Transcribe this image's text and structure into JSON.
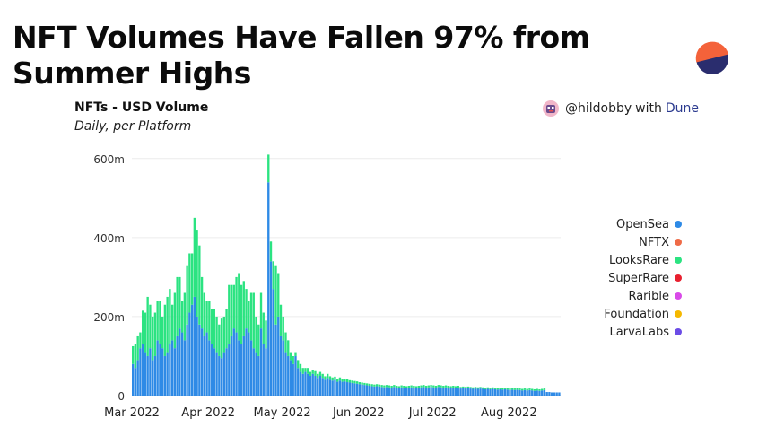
{
  "headline": "NFT Volumes Have Fallen 97% from Summer Highs",
  "logo_icon": "dune-logo-icon",
  "credit": {
    "handle": "@hildobby",
    "with": "with",
    "brand": "Dune"
  },
  "colors": {
    "OpenSea": "#2e8ae6",
    "NFTX": "#ef6b47",
    "LooksRare": "#2be381",
    "SuperRare": "#e8202f",
    "Rarible": "#d94ae8",
    "Foundation": "#f5b800",
    "LarvaLabs": "#6b4ce6"
  },
  "chart_data": {
    "type": "bar",
    "stacked": true,
    "title": "NFTs - USD Volume",
    "subtitle": "Daily, per Platform",
    "xlabel": "",
    "ylabel": "",
    "ylim": [
      0,
      620
    ],
    "yticks": [
      0,
      200,
      400,
      600
    ],
    "ytick_labels": [
      "0",
      "200m",
      "400m",
      "600m"
    ],
    "x_start": "2022-03-01",
    "xtick_labels": [
      "Mar 2022",
      "Apr 2022",
      "May 2022",
      "Jun 2022",
      "Jul 2022",
      "Aug 2022"
    ],
    "xtick_dates": [
      "2022-03-01",
      "2022-04-01",
      "2022-05-01",
      "2022-06-01",
      "2022-07-01",
      "2022-08-01"
    ],
    "legend_position": "right",
    "grid": true,
    "series": [
      {
        "name": "OpenSea",
        "values": [
          80,
          70,
          90,
          120,
          130,
          110,
          100,
          120,
          90,
          100,
          140,
          130,
          120,
          100,
          110,
          130,
          140,
          120,
          150,
          170,
          160,
          140,
          180,
          210,
          230,
          250,
          200,
          180,
          170,
          150,
          160,
          140,
          130,
          120,
          110,
          100,
          95,
          110,
          120,
          130,
          150,
          170,
          160,
          140,
          130,
          150,
          170,
          160,
          140,
          120,
          110,
          100,
          170,
          130,
          120,
          540,
          340,
          270,
          180,
          200,
          150,
          140,
          110,
          100,
          90,
          80,
          100,
          70,
          60,
          55,
          60,
          55,
          50,
          55,
          50,
          45,
          50,
          45,
          40,
          45,
          40,
          38,
          40,
          35,
          38,
          35,
          36,
          34,
          33,
          32,
          31,
          30,
          29,
          28,
          27,
          26,
          25,
          24,
          23,
          24,
          23,
          22,
          21,
          22,
          21,
          20,
          22,
          20,
          19,
          21,
          20,
          19,
          20,
          21,
          20,
          19,
          20,
          21,
          22,
          20,
          21,
          22,
          21,
          20,
          22,
          21,
          20,
          21,
          20,
          19,
          20,
          19,
          20,
          18,
          19,
          18,
          19,
          18,
          17,
          18,
          17,
          18,
          17,
          16,
          17,
          16,
          17,
          16,
          15,
          16,
          15,
          16,
          15,
          14,
          15,
          14,
          15,
          14,
          13,
          14,
          13,
          14,
          13,
          12,
          13,
          12,
          13,
          14,
          9,
          9,
          8,
          8,
          8,
          8
        ]
      },
      {
        "name": "NFTX",
        "values": []
      },
      {
        "name": "LooksRare",
        "values": [
          45,
          60,
          60,
          40,
          85,
          100,
          150,
          110,
          110,
          110,
          100,
          110,
          80,
          130,
          140,
          140,
          90,
          140,
          150,
          130,
          80,
          120,
          150,
          150,
          130,
          200,
          220,
          200,
          130,
          110,
          80,
          100,
          90,
          100,
          90,
          80,
          100,
          90,
          100,
          150,
          130,
          110,
          140,
          170,
          150,
          140,
          100,
          80,
          120,
          140,
          90,
          80,
          90,
          80,
          70,
          70,
          50,
          70,
          150,
          110,
          80,
          60,
          50,
          40,
          20,
          20,
          10,
          20,
          20,
          15,
          10,
          15,
          10,
          10,
          12,
          10,
          10,
          10,
          9,
          10,
          9,
          8,
          8,
          8,
          8,
          7,
          7,
          7,
          6,
          6,
          6,
          6,
          5,
          5,
          5,
          5,
          5,
          5,
          5,
          5,
          5,
          5,
          5,
          5,
          5,
          5,
          5,
          5,
          5,
          5,
          5,
          5,
          5,
          5,
          5,
          5,
          5,
          5,
          5,
          5,
          5,
          5,
          5,
          5,
          5,
          5,
          5,
          5,
          5,
          5,
          5,
          5,
          5,
          4,
          4,
          4,
          4,
          4,
          4,
          4,
          4,
          4,
          4,
          4,
          4,
          4,
          4,
          4,
          4,
          4,
          4,
          4,
          4,
          4,
          4,
          4,
          4,
          4,
          4,
          4,
          4,
          4,
          4,
          4,
          4,
          4,
          4,
          4,
          0,
          0,
          0,
          0,
          0,
          0
        ]
      },
      {
        "name": "SuperRare",
        "values": []
      },
      {
        "name": "Rarible",
        "values": []
      },
      {
        "name": "Foundation",
        "values": []
      },
      {
        "name": "LarvaLabs",
        "values": []
      }
    ]
  }
}
